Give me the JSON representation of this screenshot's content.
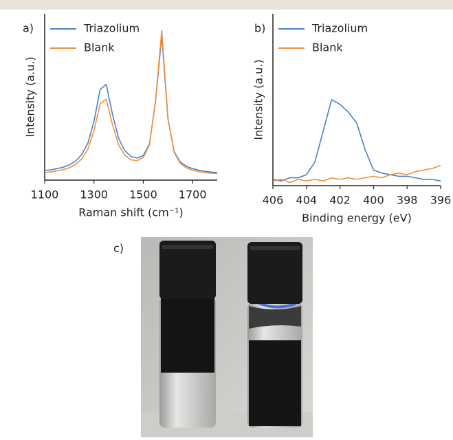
{
  "chart_data": [
    {
      "type": "line",
      "panel_label": "a)",
      "xlabel": "Raman shift (cm⁻¹)",
      "ylabel": "Intensity (a.u.)",
      "x": [
        1100,
        1125,
        1150,
        1175,
        1200,
        1225,
        1250,
        1275,
        1300,
        1325,
        1350,
        1375,
        1400,
        1425,
        1450,
        1475,
        1500,
        1525,
        1550,
        1575,
        1600,
        1625,
        1650,
        1675,
        1700,
        1725,
        1750,
        1775,
        1800
      ],
      "series": [
        {
          "name": "Triazolium",
          "color": "#4a80c8",
          "values": [
            0.063,
            0.068,
            0.076,
            0.085,
            0.101,
            0.125,
            0.168,
            0.244,
            0.388,
            0.6,
            0.633,
            0.435,
            0.276,
            0.195,
            0.156,
            0.146,
            0.163,
            0.238,
            0.524,
            0.956,
            0.405,
            0.189,
            0.12,
            0.091,
            0.076,
            0.066,
            0.058,
            0.053,
            0.05
          ]
        },
        {
          "name": "Blank",
          "color": "#ef8f3c",
          "values": [
            0.05,
            0.054,
            0.061,
            0.069,
            0.082,
            0.103,
            0.139,
            0.204,
            0.326,
            0.506,
            0.534,
            0.367,
            0.233,
            0.165,
            0.134,
            0.129,
            0.15,
            0.232,
            0.533,
            0.99,
            0.411,
            0.184,
            0.112,
            0.081,
            0.066,
            0.056,
            0.05,
            0.046,
            0.044
          ]
        }
      ],
      "xlim": [
        1100,
        1800
      ],
      "xticks": [
        1100,
        1300,
        1500,
        1700
      ],
      "ylim": [
        0,
        1.1
      ],
      "legend": "upper left"
    },
    {
      "type": "line",
      "panel_label": "b)",
      "xlabel": "Binding energy (eV)",
      "ylabel": "Intensity (a.u.)",
      "x": [
        406,
        405.5,
        405,
        404.5,
        404,
        403.5,
        403,
        402.5,
        402,
        401.5,
        401,
        400.5,
        400,
        399.5,
        399,
        398.5,
        398,
        397.5,
        397,
        396.5,
        396
      ],
      "series": [
        {
          "name": "Triazolium",
          "color": "#4a80c8",
          "values": [
            0.04,
            0.03,
            0.05,
            0.05,
            0.07,
            0.15,
            0.35,
            0.55,
            0.52,
            0.47,
            0.4,
            0.23,
            0.1,
            0.08,
            0.07,
            0.06,
            0.06,
            0.05,
            0.04,
            0.04,
            0.03
          ]
        },
        {
          "name": "Blank",
          "color": "#ef8f3c",
          "values": [
            0.03,
            0.04,
            0.02,
            0.04,
            0.03,
            0.04,
            0.03,
            0.05,
            0.04,
            0.05,
            0.04,
            0.05,
            0.06,
            0.05,
            0.07,
            0.08,
            0.07,
            0.09,
            0.1,
            0.11,
            0.13
          ]
        }
      ],
      "xlim": [
        406,
        396
      ],
      "xticks": [
        406,
        404,
        402,
        400,
        398,
        396
      ],
      "ylim": [
        0,
        1.1
      ],
      "legend": "upper left"
    }
  ],
  "panel_c": {
    "label": "c)"
  }
}
